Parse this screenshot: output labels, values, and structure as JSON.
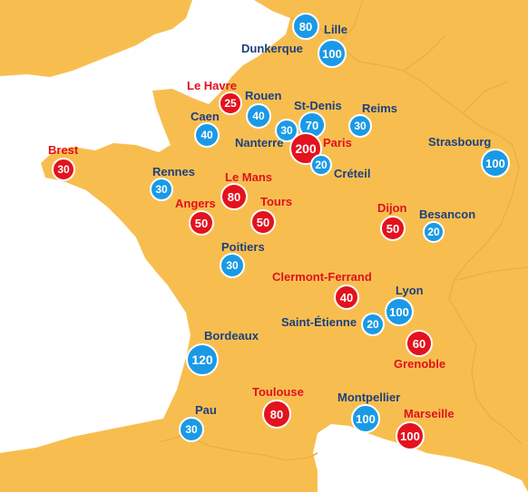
{
  "colors": {
    "sea": "#ffffff",
    "land": "#f7be4f",
    "border": "#eab147",
    "blue_badge": "#1a9ae6",
    "red_badge": "#e3121e",
    "blue_text": "#1f3f7f",
    "red_text": "#e0101e"
  },
  "cities": [
    {
      "id": "dunkerque",
      "name": "Dunkerque",
      "value": "80",
      "color": "blue"
    },
    {
      "id": "lille",
      "name": "Lille",
      "value": "100",
      "color": "blue"
    },
    {
      "id": "le-havre",
      "name": "Le Havre",
      "value": "25",
      "color": "red"
    },
    {
      "id": "rouen",
      "name": "Rouen",
      "value": "40",
      "color": "blue"
    },
    {
      "id": "caen",
      "name": "Caen",
      "value": "40",
      "color": "blue"
    },
    {
      "id": "st-denis",
      "name": "St-Denis",
      "value": "70",
      "color": "blue"
    },
    {
      "id": "nanterre",
      "name": "Nanterre",
      "value": "30",
      "color": "blue"
    },
    {
      "id": "paris",
      "name": "Paris",
      "value": "200",
      "color": "red"
    },
    {
      "id": "creteil",
      "name": "Créteil",
      "value": "20",
      "color": "blue"
    },
    {
      "id": "reims",
      "name": "Reims",
      "value": "30",
      "color": "blue"
    },
    {
      "id": "strasbourg",
      "name": "Strasbourg",
      "value": "100",
      "color": "blue"
    },
    {
      "id": "brest",
      "name": "Brest",
      "value": "30",
      "color": "red"
    },
    {
      "id": "rennes",
      "name": "Rennes",
      "value": "30",
      "color": "blue"
    },
    {
      "id": "le-mans",
      "name": "Le Mans",
      "value": "80",
      "color": "red"
    },
    {
      "id": "angers",
      "name": "Angers",
      "value": "50",
      "color": "red"
    },
    {
      "id": "tours",
      "name": "Tours",
      "value": "50",
      "color": "red"
    },
    {
      "id": "dijon",
      "name": "Dijon",
      "value": "50",
      "color": "red"
    },
    {
      "id": "besancon",
      "name": "Besancon",
      "value": "20",
      "color": "blue"
    },
    {
      "id": "poitiers",
      "name": "Poitiers",
      "value": "30",
      "color": "blue"
    },
    {
      "id": "clermont-ferrand",
      "name": "Clermont-Ferrand",
      "value": "40",
      "color": "red"
    },
    {
      "id": "lyon",
      "name": "Lyon",
      "value": "100",
      "color": "blue"
    },
    {
      "id": "saint-etienne",
      "name": "Saint-Étienne",
      "value": "20",
      "color": "blue"
    },
    {
      "id": "grenoble",
      "name": "Grenoble",
      "value": "60",
      "color": "red"
    },
    {
      "id": "bordeaux",
      "name": "Bordeaux",
      "value": "120",
      "color": "blue"
    },
    {
      "id": "toulouse",
      "name": "Toulouse",
      "value": "80",
      "color": "red"
    },
    {
      "id": "montpellier",
      "name": "Montpellier",
      "value": "100",
      "color": "blue"
    },
    {
      "id": "marseille",
      "name": "Marseille",
      "value": "100",
      "color": "red"
    },
    {
      "id": "pau",
      "name": "Pau",
      "value": "30",
      "color": "blue"
    }
  ]
}
